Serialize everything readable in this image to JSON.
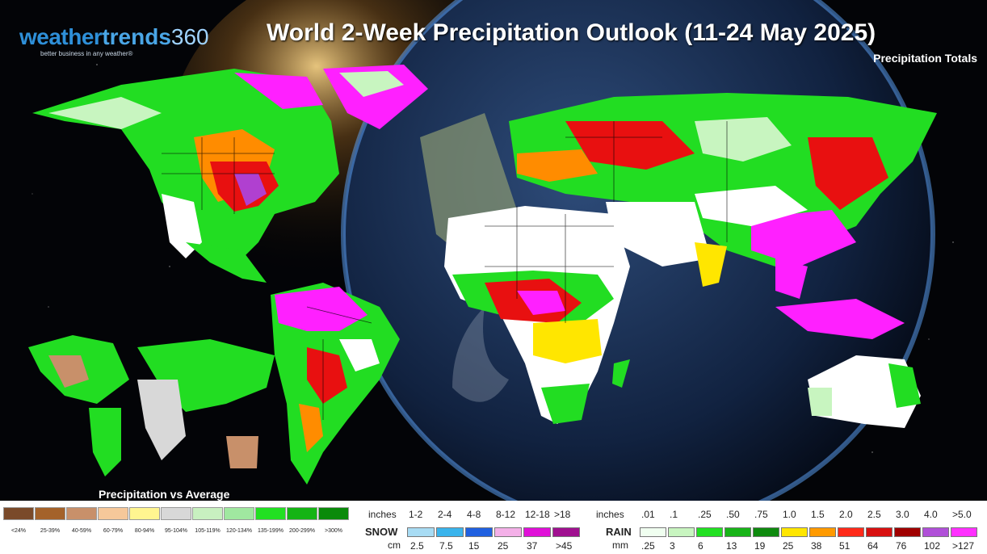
{
  "header": {
    "logo_weather": "weather",
    "logo_trends": "trends",
    "logo_360": "360",
    "logo_tagline": "better business in any weather®",
    "title": "World 2-Week Precipitation Outlook (11-24 May 2025)",
    "subtitle": "Precipitation Totals"
  },
  "inset": {
    "label": "Precipitation vs Average"
  },
  "colors": {
    "dry": "#ffffff",
    "light_green": "#c8f5c0",
    "green": "#22dd22",
    "dark_green": "#108a10",
    "yellow": "#ffe600",
    "orange": "#ff8c00",
    "red": "#e81010",
    "dark_red": "#a00000",
    "purple": "#b040d0",
    "magenta": "#ff20ff"
  },
  "legend_percent": {
    "items": [
      {
        "label": "<24%",
        "color": "#7a4a2a"
      },
      {
        "label": "25-39%",
        "color": "#a4622a"
      },
      {
        "label": "40-59%",
        "color": "#c8906a"
      },
      {
        "label": "60-79%",
        "color": "#f6c89a"
      },
      {
        "label": "80-94%",
        "color": "#fff590"
      },
      {
        "label": "95-104%",
        "color": "#d8d8d8"
      },
      {
        "label": "105-119%",
        "color": "#c8f0c0"
      },
      {
        "label": "120-134%",
        "color": "#a0e8a0"
      },
      {
        "label": "135-199%",
        "color": "#22e022"
      },
      {
        "label": "200-299%",
        "color": "#14b414"
      },
      {
        "label": ">300%",
        "color": "#0a8a0a"
      }
    ]
  },
  "legend_snow": {
    "label": "SNOW",
    "inches_label": "inches",
    "cm_label": "cm",
    "inches": [
      "1-2",
      "2-4",
      "4-8",
      "8-12",
      "12-18",
      ">18"
    ],
    "cm": [
      "2.5",
      "7.5",
      "15",
      "25",
      "37",
      ">45"
    ],
    "colors": [
      "#a8dcf4",
      "#3ab4ec",
      "#2060e0",
      "#f4b0e8",
      "#e010d8",
      "#a01090"
    ]
  },
  "legend_rain": {
    "label": "RAIN",
    "inches_label": "inches",
    "mm_label": "mm",
    "inches": [
      ".01",
      ".1",
      ".25",
      ".50",
      ".75",
      "1.0",
      "1.5",
      "2.0",
      "2.5",
      "3.0",
      "4.0",
      ">5.0"
    ],
    "mm": [
      ".25",
      "3",
      "6",
      "13",
      "19",
      "25",
      "38",
      "51",
      "64",
      "76",
      "102",
      ">127"
    ],
    "colors": [
      "#f0fff0",
      "#c8f5c0",
      "#22e022",
      "#18b418",
      "#0e8a0e",
      "#ffe600",
      "#ff9a00",
      "#ff2a1a",
      "#d81010",
      "#a00000",
      "#b050d8",
      "#ff30ff"
    ]
  }
}
